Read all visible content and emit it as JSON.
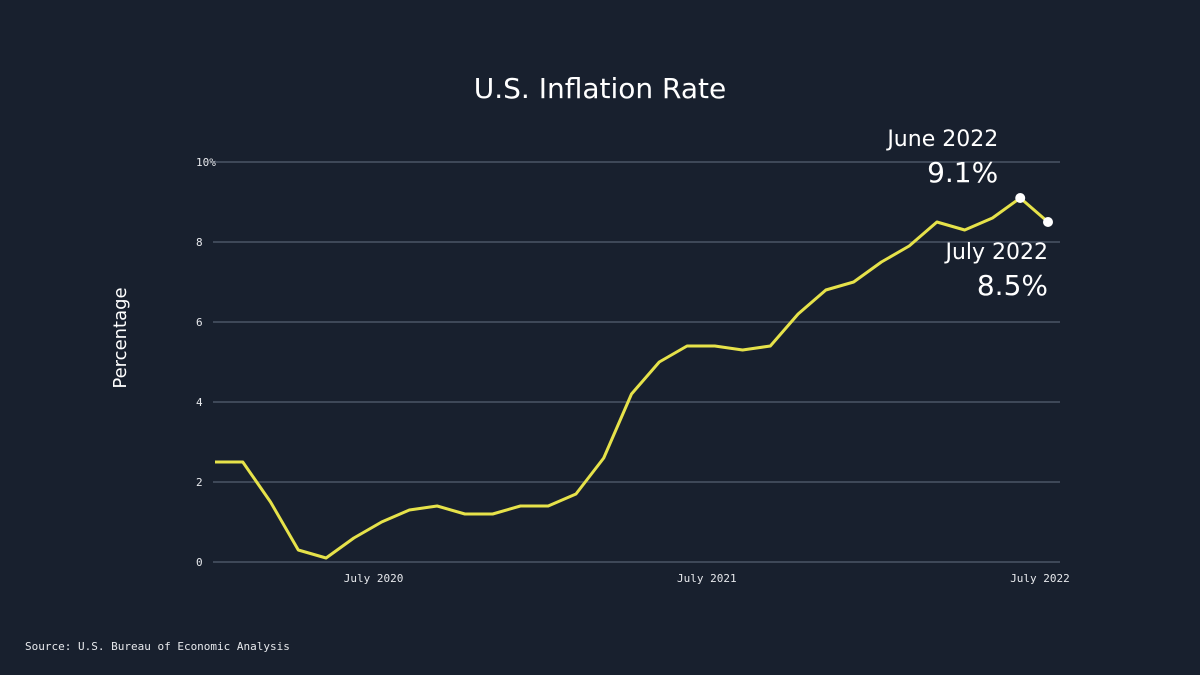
{
  "chart_data": {
    "type": "line",
    "title": "U.S. Inflation Rate",
    "y_label": "Percentage",
    "source": "Source: U.S. Bureau of Economic Analysis",
    "categories": [
      null,
      null,
      null,
      null,
      null,
      null,
      "July 2020",
      null,
      null,
      null,
      null,
      null,
      null,
      null,
      null,
      null,
      null,
      null,
      "July 2021",
      null,
      null,
      null,
      null,
      null,
      null,
      null,
      null,
      null,
      null,
      null,
      "July 2022"
    ],
    "series": [
      {
        "name": "Inflation",
        "color": "#e6e24a",
        "values": [
          2.5,
          2.5,
          1.5,
          0.3,
          0.1,
          0.6,
          1.0,
          1.3,
          1.4,
          1.2,
          1.2,
          1.4,
          1.4,
          1.7,
          2.6,
          4.2,
          5.0,
          5.4,
          5.4,
          5.3,
          5.4,
          6.2,
          6.8,
          7.0,
          7.5,
          7.9,
          8.5,
          8.3,
          8.6,
          9.1,
          8.5
        ],
        "value_labels": [
          null,
          null,
          null,
          null,
          null,
          null,
          null,
          null,
          null,
          null,
          null,
          null,
          null,
          null,
          null,
          null,
          null,
          null,
          null,
          null,
          null,
          null,
          null,
          null,
          null,
          null,
          null,
          null,
          null,
          "9.1%",
          "8.5%"
        ]
      }
    ],
    "annotations": [
      "June 2022",
      "July 2022"
    ],
    "ylim": [
      0,
      10
    ],
    "yticks": [
      0,
      2,
      4,
      6,
      8,
      {
        "value": 10,
        "label": "10%"
      }
    ],
    "grid": true
  }
}
